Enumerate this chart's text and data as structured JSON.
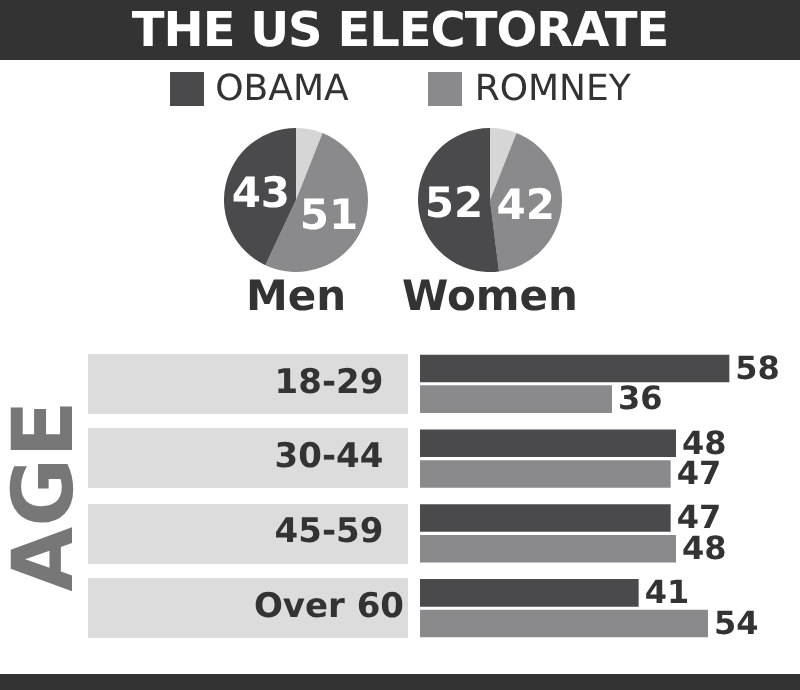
{
  "chart_data": [
    {
      "type": "pie",
      "title": "Men",
      "categories": [
        null,
        null,
        null
      ],
      "values": [
        6,
        51,
        43
      ],
      "colors": [
        "#d6d6d6",
        "#8a8a8c",
        "#4a4a4c"
      ],
      "value_labels": [
        null,
        "51",
        "43"
      ]
    },
    {
      "type": "pie",
      "title": "Women",
      "categories": [
        null,
        null,
        null
      ],
      "values": [
        6,
        42,
        52
      ],
      "colors": [
        "#d6d6d6",
        "#8a8a8c",
        "#4a4a4c"
      ],
      "value_labels": [
        null,
        "42",
        "52"
      ]
    },
    {
      "type": "bar",
      "orientation": "horizontal",
      "title": "THE US ELECTORATE",
      "ylabel": "AGE",
      "legend": "top",
      "data_labels": true,
      "tick_labels": "y",
      "categories": [
        "18-29",
        "30-44",
        "45-59",
        "Over 60"
      ],
      "series": [
        {
          "name": "OBAMA",
          "color": "#4a4a4c",
          "values": [
            58,
            48,
            47,
            41
          ]
        },
        {
          "name": "ROMNEY",
          "color": "#8a8a8c",
          "values": [
            36,
            47,
            48,
            54
          ]
        }
      ]
    }
  ]
}
